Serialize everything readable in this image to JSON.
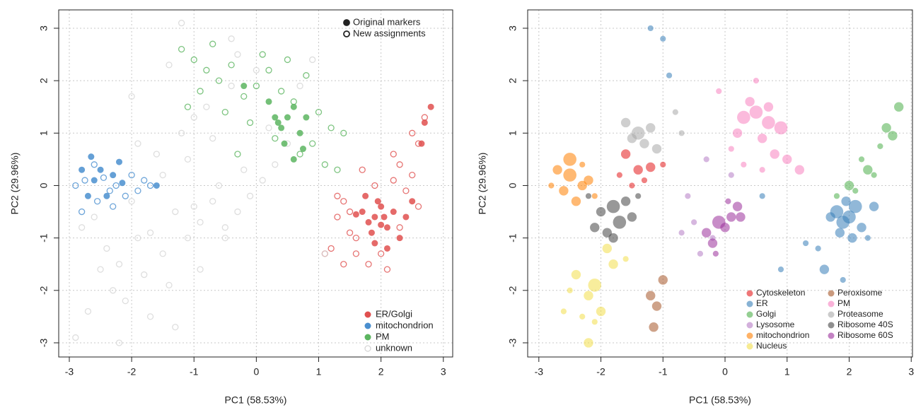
{
  "chart_data": [
    {
      "type": "scatter",
      "xlabel": "PC1 (58.53%)",
      "ylabel": "PC2 (29.96%)",
      "xlim": [
        -3.17,
        3.15
      ],
      "ylim": [
        -3.27,
        3.35
      ],
      "xticks": [
        -3,
        -2,
        -1,
        0,
        1,
        2,
        3
      ],
      "yticks": [
        -3,
        -2,
        -1,
        0,
        1,
        2,
        3
      ],
      "grid": true,
      "marker_legend": [
        "Original markers",
        "New assignments"
      ],
      "marker_legend_position": "top right",
      "legend_position": "bottom right",
      "series": [
        {
          "name": "ER/Golgi",
          "color": "#e0504f",
          "x": [
            1.7,
            1.8,
            1.9,
            2.0,
            2.1,
            1.85,
            1.95,
            2.05,
            1.75,
            2.2,
            2.3,
            2.1,
            1.9,
            2.4,
            2.5,
            2.8,
            2.7,
            2.65,
            2.0,
            1.6
          ],
          "y": [
            -0.5,
            -0.7,
            -0.6,
            -0.4,
            -0.8,
            -0.9,
            -0.3,
            -0.6,
            -0.2,
            -0.5,
            -1.0,
            -1.2,
            -1.1,
            -0.6,
            -0.3,
            1.5,
            1.2,
            0.8,
            -0.75,
            -0.55
          ],
          "x_new": [
            1.4,
            1.5,
            1.6,
            1.3,
            1.2,
            2.2,
            2.3,
            2.5,
            2.6,
            2.4,
            2.7,
            1.8,
            1.9,
            2.1,
            1.5,
            1.3,
            2.0,
            2.3,
            1.7,
            1.4,
            2.6,
            2.5,
            1.1,
            2.2,
            1.6
          ],
          "y_new": [
            -0.3,
            -0.9,
            -1.3,
            -0.6,
            -1.2,
            0.1,
            0.4,
            0.2,
            0.8,
            -0.1,
            1.3,
            -1.5,
            0.0,
            -1.6,
            -0.5,
            -0.2,
            -1.3,
            -0.8,
            0.3,
            -1.5,
            -0.4,
            1.0,
            -1.3,
            0.6,
            -1.0
          ]
        },
        {
          "name": "mitochondrion",
          "color": "#4a8fcf",
          "x": [
            -2.65,
            -2.6,
            -2.5,
            -2.4,
            -2.3,
            -2.2,
            -2.15,
            -1.6,
            -2.8,
            -2.7
          ],
          "y": [
            0.55,
            0.1,
            0.3,
            -0.2,
            0.2,
            0.45,
            0.05,
            0.0,
            0.3,
            -0.2
          ],
          "x_new": [
            -2.9,
            -2.75,
            -2.55,
            -2.45,
            -2.35,
            -2.25,
            -2.1,
            -2.0,
            -1.9,
            -1.8,
            -1.7,
            -2.6,
            -2.8,
            -2.3
          ],
          "y_new": [
            0.0,
            0.1,
            -0.3,
            0.15,
            -0.1,
            0.0,
            -0.2,
            0.2,
            -0.1,
            0.1,
            0.0,
            0.4,
            -0.5,
            -0.4
          ]
        },
        {
          "name": "PM",
          "color": "#5cb560",
          "x": [
            0.3,
            0.4,
            0.5,
            0.6,
            0.7,
            0.45,
            0.2,
            -0.2,
            0.75,
            0.8,
            0.6,
            0.35
          ],
          "y": [
            1.3,
            1.1,
            1.3,
            1.5,
            1.0,
            0.8,
            1.6,
            1.9,
            0.7,
            1.3,
            0.5,
            1.2
          ],
          "x_new": [
            -1.2,
            -1.0,
            -0.8,
            -0.6,
            -0.4,
            -0.2,
            0.0,
            0.2,
            0.4,
            0.6,
            0.8,
            1.0,
            1.2,
            1.4,
            -0.9,
            -0.5,
            -0.1,
            0.3,
            0.7,
            1.1,
            -0.7,
            0.1,
            0.5,
            0.9,
            1.3,
            -0.3,
            -1.1
          ],
          "y_new": [
            2.6,
            2.4,
            2.2,
            2.0,
            2.3,
            1.7,
            1.9,
            2.2,
            1.8,
            1.6,
            2.1,
            1.4,
            1.1,
            1.0,
            1.8,
            1.4,
            1.2,
            0.9,
            0.6,
            0.4,
            2.7,
            2.5,
            2.4,
            0.8,
            0.3,
            0.6,
            1.5
          ]
        },
        {
          "name": "unknown",
          "color": "#d6d6d6",
          "x_new": [
            -2.9,
            -2.7,
            -2.5,
            -2.3,
            -2.1,
            -1.9,
            -1.7,
            -1.5,
            -1.3,
            -1.1,
            -0.9,
            -0.7,
            -0.5,
            -0.3,
            -0.1,
            0.1,
            0.3,
            0.5,
            0.7,
            0.9,
            1.1,
            -2.6,
            -2.2,
            -1.8,
            -1.4,
            -1.0,
            -0.6,
            -0.2,
            0.2,
            -2.4,
            -2.0,
            -1.6,
            -1.2,
            -0.8,
            -0.4,
            0.0,
            -1.5,
            -1.1,
            -0.7,
            -0.3,
            -1.3,
            -0.9,
            -0.5,
            -1.7,
            -2.2,
            -1.9,
            -1.2,
            -0.4,
            -1.0,
            -2.0,
            -2.8,
            -1.4
          ],
          "y_new": [
            -2.9,
            -2.4,
            -1.6,
            -2.0,
            -2.2,
            -1.0,
            -0.9,
            -1.3,
            -0.5,
            -1.0,
            -0.7,
            -0.3,
            -0.8,
            -0.5,
            -0.2,
            0.1,
            0.4,
            0.8,
            1.9,
            2.4,
            -1.3,
            -0.6,
            -1.5,
            -1.7,
            -1.9,
            -0.4,
            0.0,
            0.3,
            1.1,
            -1.2,
            -0.3,
            0.6,
            1.0,
            1.5,
            1.9,
            2.2,
            0.2,
            0.5,
            0.9,
            2.5,
            -2.7,
            -1.6,
            -1.0,
            -2.5,
            -3.0,
            0.8,
            3.1,
            2.8,
            1.3,
            1.7,
            -0.8,
            2.3
          ]
        }
      ]
    },
    {
      "type": "bubble",
      "xlabel": "PC1 (58.53%)",
      "ylabel": "PC2 (29.96%)",
      "xlim": [
        -3.18,
        3.02
      ],
      "ylim": [
        -3.27,
        3.35
      ],
      "xticks": [
        -3,
        -2,
        -1,
        0,
        1,
        2,
        3
      ],
      "yticks": [
        -3,
        -2,
        -1,
        0,
        1,
        2,
        3
      ],
      "grid": true,
      "legend_position": "bottom right",
      "series": [
        {
          "name": "Cytoskeleton",
          "color": "#e41a1c",
          "x": [
            -1.6,
            -1.4,
            -1.2,
            -1.7,
            -1.3,
            -1.0,
            -1.5
          ],
          "y": [
            0.6,
            0.3,
            0.35,
            0.2,
            0.1,
            0.4,
            0.0
          ],
          "sizes": [
            2,
            2,
            2,
            1,
            1,
            1,
            1
          ]
        },
        {
          "name": "ER",
          "color": "#377eb8",
          "x": [
            1.8,
            1.9,
            2.0,
            2.1,
            1.85,
            1.95,
            2.05,
            1.7,
            2.2,
            2.4,
            1.5,
            1.6,
            2.3,
            1.3,
            1.9,
            -1.2,
            -1.0,
            -0.9,
            0.6,
            0.9
          ],
          "y": [
            -0.5,
            -0.7,
            -0.6,
            -0.4,
            -0.9,
            -0.3,
            -1.0,
            -0.6,
            -0.8,
            -0.4,
            -1.2,
            -1.6,
            -1.0,
            -1.1,
            -1.8,
            3.0,
            2.8,
            2.1,
            -0.2,
            -1.6
          ],
          "sizes": [
            3,
            3,
            3,
            3,
            2,
            2,
            2,
            2,
            2,
            2,
            1,
            2,
            1,
            1,
            1,
            1,
            1,
            1,
            1,
            1
          ]
        },
        {
          "name": "Golgi",
          "color": "#4daf4a",
          "x": [
            2.8,
            2.6,
            2.7,
            2.5,
            2.3,
            2.4,
            2.2,
            2.0,
            2.1,
            1.8
          ],
          "y": [
            1.5,
            1.1,
            0.95,
            0.75,
            0.3,
            0.2,
            0.5,
            0.0,
            -0.1,
            -0.2
          ],
          "sizes": [
            2,
            2,
            2,
            1,
            2,
            1,
            1,
            2,
            1,
            1
          ]
        },
        {
          "name": "Lysosome",
          "color": "#b57cc4",
          "x": [
            -0.7,
            -0.5,
            -0.4,
            -0.2,
            0.1,
            -0.6,
            -0.3
          ],
          "y": [
            -0.9,
            -0.7,
            -1.3,
            -1.0,
            0.2,
            -0.2,
            0.5
          ],
          "sizes": [
            1,
            1,
            1,
            1,
            1,
            1,
            1
          ]
        },
        {
          "name": "mitochondrion",
          "color": "#ff7f00",
          "x": [
            -2.7,
            -2.5,
            -2.3,
            -2.6,
            -2.4,
            -2.2,
            -2.1,
            -2.8,
            -2.5,
            -2.3
          ],
          "y": [
            0.3,
            0.2,
            0.0,
            -0.1,
            -0.3,
            0.1,
            -0.2,
            0.0,
            0.5,
            0.4
          ],
          "sizes": [
            2,
            3,
            2,
            2,
            2,
            2,
            1,
            1,
            3,
            1
          ]
        },
        {
          "name": "Nucleus",
          "color": "#f2de4a",
          "x": [
            -2.4,
            -2.2,
            -2.0,
            -1.8,
            -2.1,
            -2.3,
            -1.9,
            -2.5,
            -2.2,
            -1.6,
            -2.6,
            -2.1
          ],
          "y": [
            -1.7,
            -2.1,
            -2.4,
            -1.5,
            -1.9,
            -2.5,
            -1.2,
            -2.0,
            -3.0,
            -1.4,
            -2.4,
            -2.6
          ],
          "sizes": [
            2,
            2,
            2,
            2,
            3,
            1,
            2,
            1,
            2,
            1,
            1,
            1
          ]
        },
        {
          "name": "Peroxisome",
          "color": "#a65628",
          "x": [
            -1.2,
            -1.0,
            -1.1,
            -1.15
          ],
          "y": [
            -2.1,
            -1.8,
            -2.3,
            -2.7
          ],
          "sizes": [
            2,
            2,
            2,
            2
          ]
        },
        {
          "name": "PM",
          "color": "#f781bf",
          "x": [
            0.3,
            0.5,
            0.7,
            0.6,
            0.4,
            0.2,
            0.8,
            0.9,
            1.0,
            0.1,
            -0.1,
            0.5,
            0.6,
            1.2,
            0.3,
            0.7
          ],
          "y": [
            1.3,
            1.4,
            1.2,
            0.9,
            1.6,
            1.0,
            0.6,
            1.1,
            0.5,
            0.7,
            1.8,
            2.0,
            0.3,
            0.3,
            0.4,
            1.5
          ],
          "sizes": [
            3,
            3,
            3,
            2,
            2,
            2,
            2,
            3,
            2,
            1,
            1,
            1,
            1,
            2,
            1,
            2
          ]
        },
        {
          "name": "Proteasome",
          "color": "#a8a8a8",
          "x": [
            -1.6,
            -1.4,
            -1.3,
            -1.5,
            -1.2,
            -1.1,
            -0.8,
            -0.7
          ],
          "y": [
            1.2,
            1.0,
            0.8,
            0.9,
            1.1,
            0.7,
            1.4,
            1.0
          ],
          "sizes": [
            2,
            3,
            2,
            2,
            2,
            2,
            1,
            1
          ]
        },
        {
          "name": "Ribosome 40S",
          "color": "#444444",
          "x": [
            -2.0,
            -1.8,
            -1.7,
            -1.9,
            -1.6,
            -2.1,
            -1.5,
            -1.8,
            -1.4,
            -2.2
          ],
          "y": [
            -0.5,
            -0.4,
            -0.7,
            -0.9,
            -0.3,
            -0.8,
            -0.6,
            -1.0,
            -0.2,
            -0.2
          ],
          "sizes": [
            2,
            3,
            3,
            2,
            2,
            2,
            2,
            2,
            1,
            1
          ]
        },
        {
          "name": "Ribosome 60S",
          "color": "#9b2f9b",
          "x": [
            0.0,
            -0.1,
            0.1,
            0.2,
            -0.2,
            -0.3,
            0.05,
            -0.15,
            0.25
          ],
          "y": [
            -0.8,
            -0.7,
            -0.6,
            -0.4,
            -1.1,
            -0.9,
            -0.3,
            -1.3,
            -0.6
          ],
          "sizes": [
            2,
            3,
            2,
            2,
            2,
            2,
            1,
            1,
            2
          ]
        }
      ]
    }
  ]
}
